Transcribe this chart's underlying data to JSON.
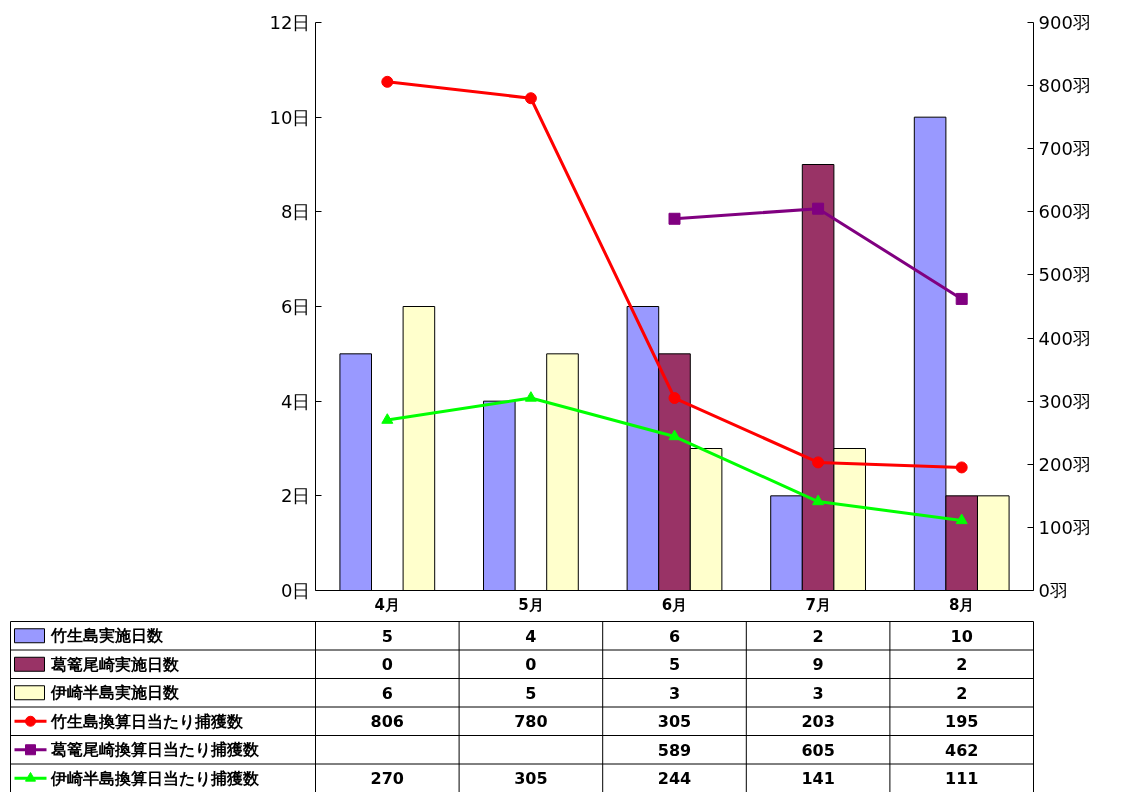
{
  "chart_data": {
    "type": "bar",
    "categories": [
      "4月",
      "5月",
      "6月",
      "7月",
      "8月"
    ],
    "series": [
      {
        "name": "竹生島実施日数",
        "color": "#9999ff",
        "values": [
          5,
          4,
          6,
          2,
          10
        ]
      },
      {
        "name": "葛篭尾崎実施日数",
        "color": "#993366",
        "values": [
          0,
          0,
          5,
          9,
          2
        ]
      },
      {
        "name": "伊崎半島実施日数",
        "color": "#ffffcc",
        "values": [
          6,
          5,
          3,
          3,
          2
        ]
      },
      {
        "name": "竹生島換算日当たり捕獲数",
        "type": "line",
        "axis": "y2",
        "marker": "circle",
        "color": "#ff0000",
        "values": [
          806,
          780,
          305,
          203,
          195
        ]
      },
      {
        "name": "葛篭尾崎換算日当たり捕獲数",
        "type": "line",
        "axis": "y2",
        "marker": "square",
        "color": "#800080",
        "values": [
          null,
          null,
          589,
          605,
          462
        ]
      },
      {
        "name": "伊崎半島換算日当たり捕獲数",
        "type": "line",
        "axis": "y2",
        "marker": "triangle",
        "color": "#00ff00",
        "values": [
          270,
          305,
          244,
          141,
          111
        ]
      }
    ],
    "ylim": [
      0,
      12
    ],
    "yticks": [
      {
        "value": 0,
        "label": "0日"
      },
      {
        "value": 2,
        "label": "2日"
      },
      {
        "value": 4,
        "label": "4日"
      },
      {
        "value": 6,
        "label": "6日"
      },
      {
        "value": 8,
        "label": "8日"
      },
      {
        "value": 10,
        "label": "10日"
      },
      {
        "value": 12,
        "label": "12日"
      }
    ],
    "y2lim": [
      0,
      900
    ],
    "y2ticks": [
      {
        "value": 0,
        "label": "0羽"
      },
      {
        "value": 100,
        "label": "100羽"
      },
      {
        "value": 200,
        "label": "200羽"
      },
      {
        "value": 300,
        "label": "300羽"
      },
      {
        "value": 400,
        "label": "400羽"
      },
      {
        "value": 500,
        "label": "500羽"
      },
      {
        "value": 600,
        "label": "600羽"
      },
      {
        "value": 700,
        "label": "700羽"
      },
      {
        "value": 800,
        "label": "800羽"
      },
      {
        "value": 900,
        "label": "900羽"
      }
    ],
    "grid": false,
    "legend": "bottom",
    "data_labels": true,
    "line_style": "solid"
  }
}
